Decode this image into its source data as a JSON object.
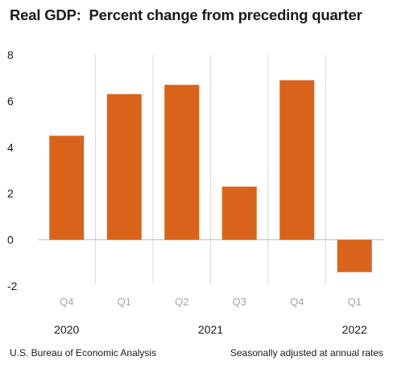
{
  "header": {
    "title": "Real GDP:  Percent change from preceding quarter"
  },
  "footer": {
    "source": "U.S. Bureau of Economic Analysis",
    "note": "Seasonally adjusted at annual rates"
  },
  "colors": {
    "bar": "#D9631B",
    "quarter_label": "#A6A6A6",
    "text": "#1A1A1A",
    "gridline": "#D9D9D9",
    "zero_line": "#BFBFBF"
  },
  "chart_data": {
    "type": "bar",
    "categories": [
      "Q4",
      "Q1",
      "Q2",
      "Q3",
      "Q4",
      "Q1"
    ],
    "years": [
      {
        "label": "2020",
        "start": 0,
        "end": 0
      },
      {
        "label": "2021",
        "start": 1,
        "end": 4
      },
      {
        "label": "2022",
        "start": 5,
        "end": 5
      }
    ],
    "values": [
      4.5,
      6.3,
      6.7,
      2.3,
      6.9,
      -1.4
    ],
    "title": "Real GDP:  Percent change from preceding quarter",
    "xlabel": "",
    "ylabel": "",
    "ylim": [
      -2,
      8
    ],
    "yticks": [
      "-2",
      "0",
      "2",
      "4",
      "6",
      "8"
    ],
    "ytick_values": [
      -2,
      0,
      2,
      4,
      6,
      8
    ],
    "grid": false,
    "legend": "none"
  }
}
